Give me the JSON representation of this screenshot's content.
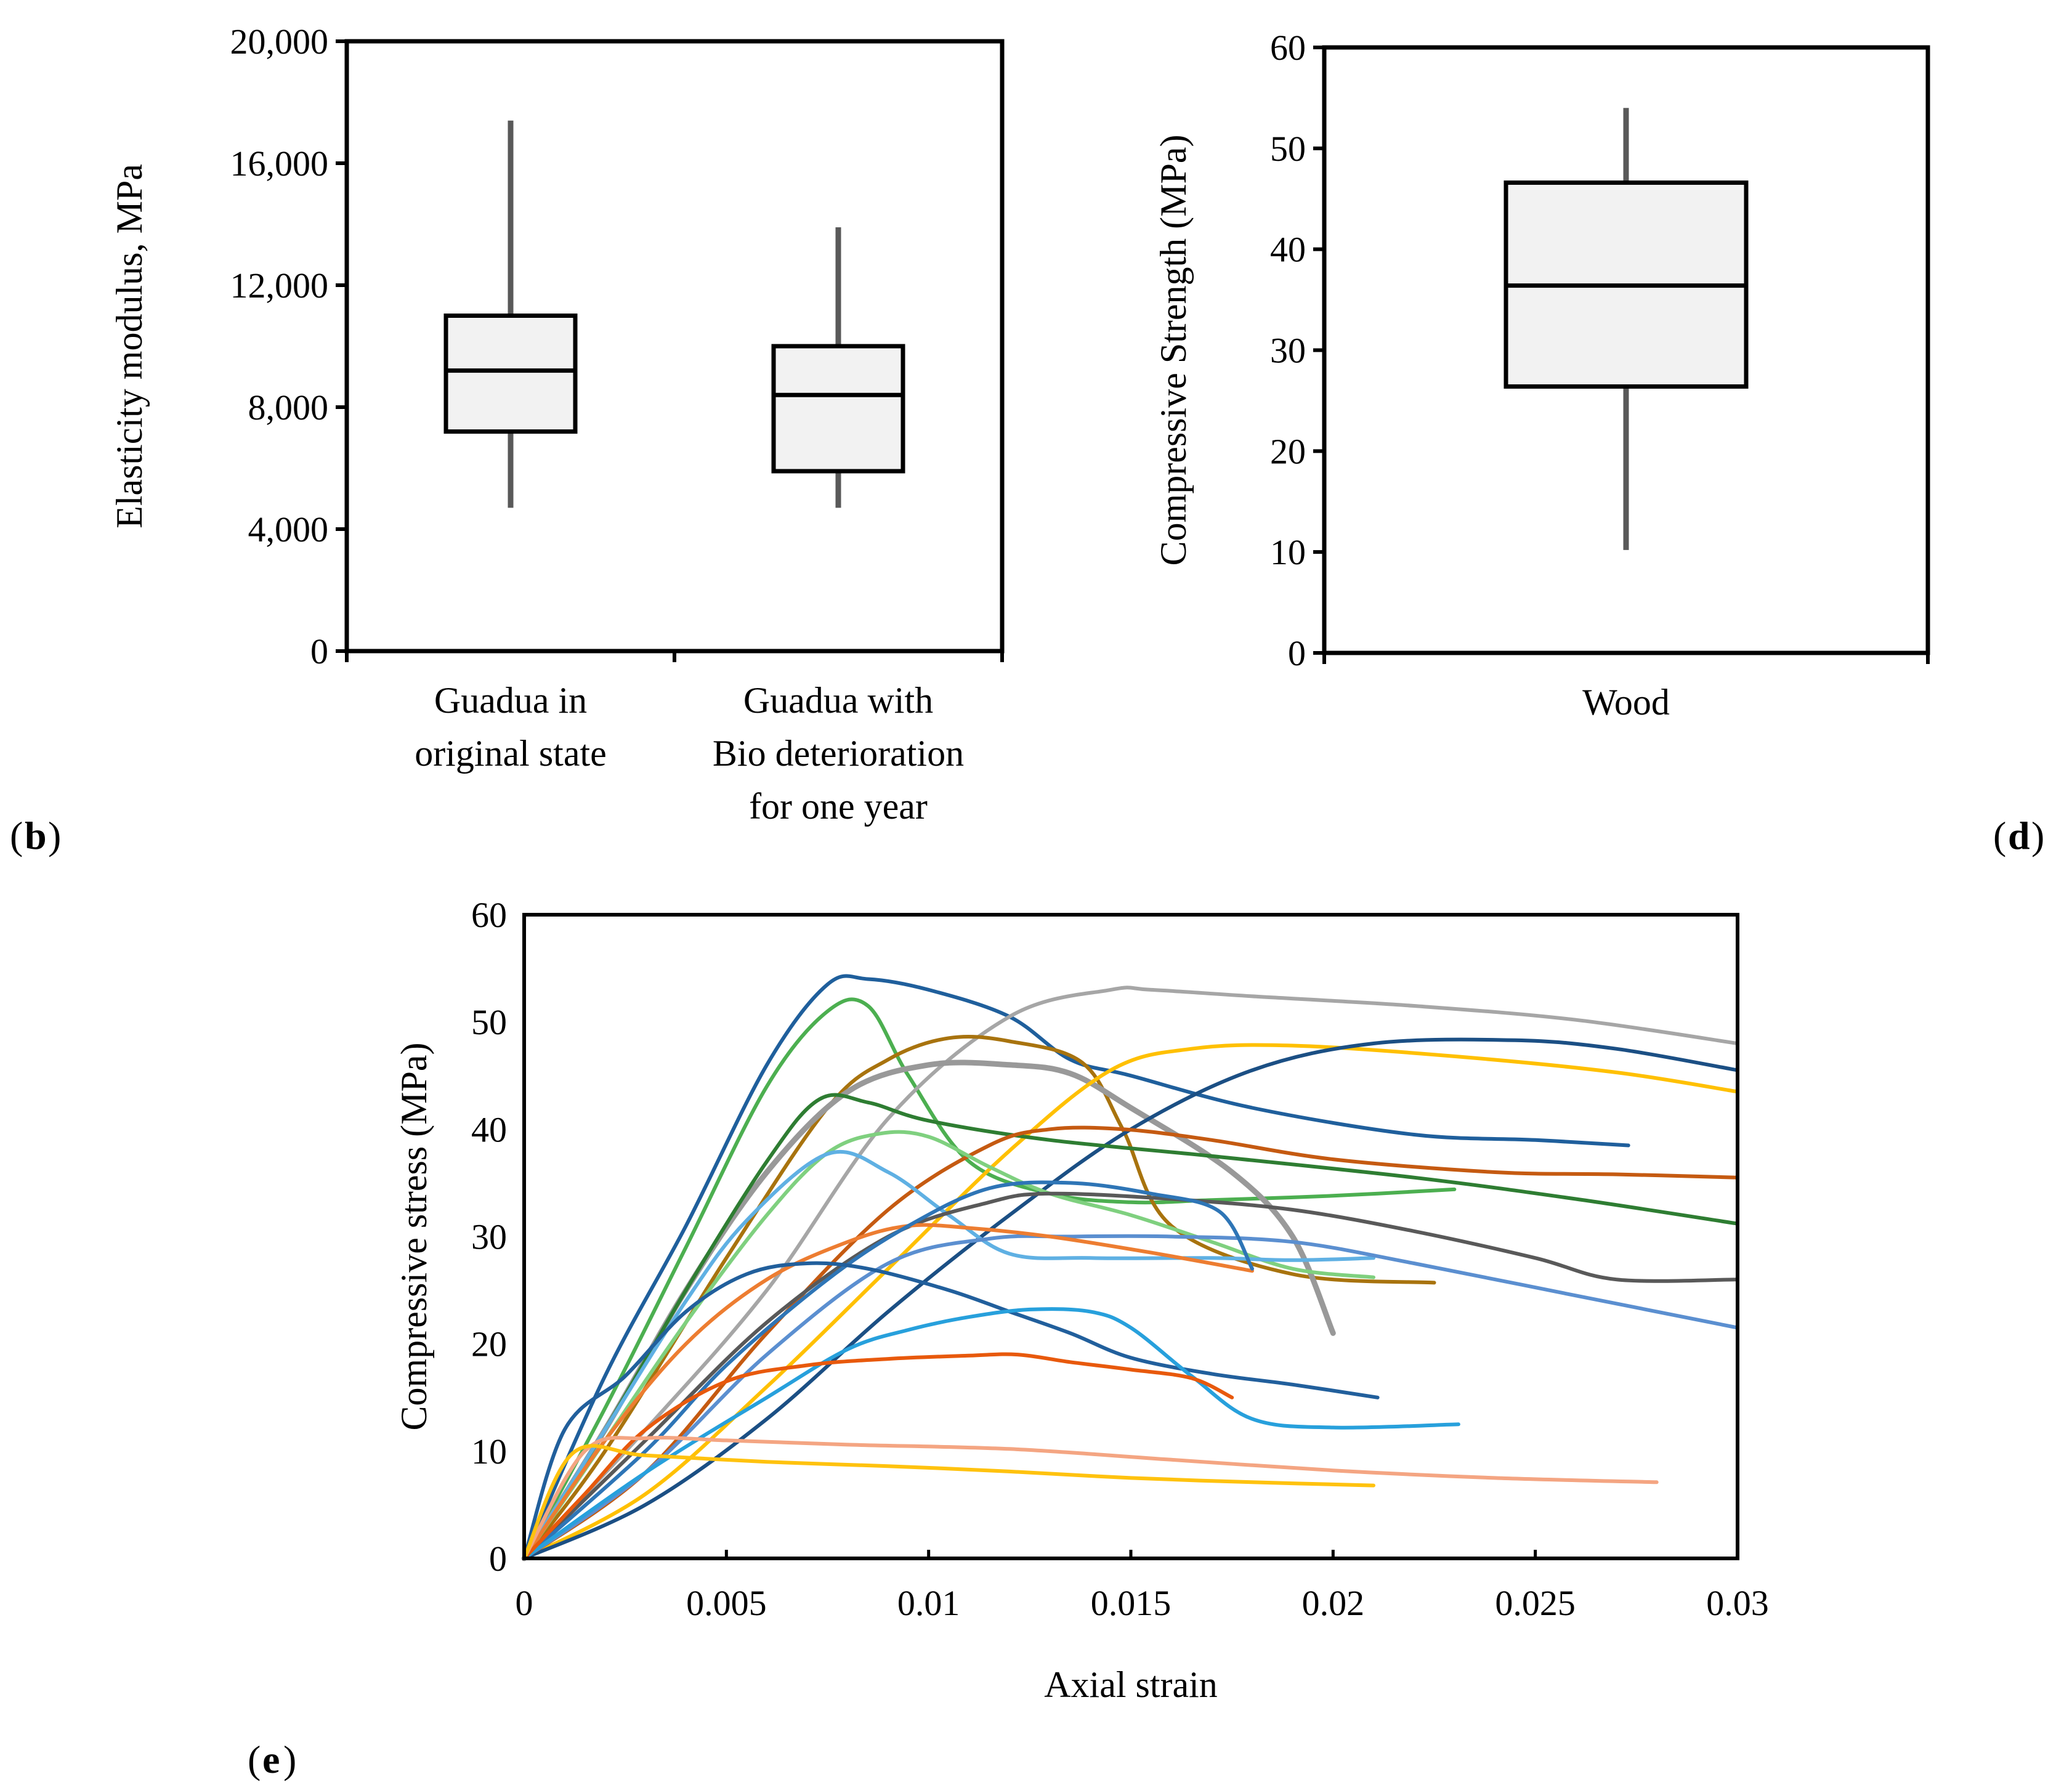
{
  "colors": {
    "axis": "#000000",
    "box_fill": "#f2f2f2",
    "whisker": "#595959"
  },
  "panel_labels": {
    "b": "b",
    "d": "d",
    "e": "e"
  },
  "chart_data": [
    {
      "id": "b",
      "type": "box",
      "title": "",
      "xlabel": "",
      "ylabel": "Elasticity modulus, MPa",
      "ylim": [
        0,
        20000
      ],
      "yticks": [
        "0",
        "4,000",
        "8,000",
        "12,000",
        "16,000",
        "20,000"
      ],
      "ytick_values": [
        0,
        4000,
        8000,
        12000,
        16000,
        20000
      ],
      "grid": false,
      "boxes": [
        {
          "label_lines": [
            "Guadua in",
            "original state"
          ],
          "min": 4700,
          "q1": 7200,
          "median": 9200,
          "q3": 11000,
          "max": 17400
        },
        {
          "label_lines": [
            "Guadua with",
            "Bio deterioration",
            "for one year"
          ],
          "min": 4700,
          "q1": 5900,
          "median": 8400,
          "q3": 10000,
          "max": 13900
        }
      ]
    },
    {
      "id": "d",
      "type": "box",
      "title": "",
      "xlabel": "",
      "ylabel": "Compressive Strength (MPa)",
      "ylim": [
        0,
        60
      ],
      "yticks": [
        "0",
        "10",
        "20",
        "30",
        "40",
        "50",
        "60"
      ],
      "ytick_values": [
        0,
        10,
        20,
        30,
        40,
        50,
        60
      ],
      "grid": false,
      "boxes": [
        {
          "label_lines": [
            "Wood"
          ],
          "min": 10.2,
          "q1": 26.4,
          "median": 36.4,
          "q3": 46.6,
          "max": 54.0
        }
      ]
    },
    {
      "id": "e",
      "type": "line",
      "title": "",
      "xlabel": "Axial strain",
      "ylabel": "Compressive stress (MPa)",
      "xlim": [
        0,
        0.03
      ],
      "ylim": [
        0,
        60
      ],
      "xticks": [
        "0",
        "0.005",
        "0.01",
        "0.015",
        "0.02",
        "0.025",
        "0.03"
      ],
      "xtick_values": [
        0,
        0.005,
        0.01,
        0.015,
        0.02,
        0.025,
        0.03
      ],
      "yticks": [
        "0",
        "10",
        "20",
        "30",
        "40",
        "50",
        "60"
      ],
      "ytick_values": [
        0,
        10,
        20,
        30,
        40,
        50,
        60
      ],
      "grid": false,
      "legend": "none",
      "series": [
        {
          "color": "#1f5f9c",
          "x": [
            0,
            0.002,
            0.004,
            0.006,
            0.0075,
            0.0085,
            0.01,
            0.012,
            0.0135,
            0.015,
            0.018,
            0.022,
            0.025,
            0.0273
          ],
          "y": [
            0,
            17,
            31,
            46,
            53.5,
            54,
            53,
            50.5,
            46.5,
            45,
            42,
            39.5,
            39,
            38.5
          ]
        },
        {
          "color": "#4caf50",
          "x": [
            0,
            0.002,
            0.004,
            0.006,
            0.0075,
            0.0085,
            0.0095,
            0.011,
            0.013,
            0.015,
            0.017,
            0.02,
            0.023
          ],
          "y": [
            0,
            14,
            29,
            44,
            51,
            51.5,
            45,
            37,
            34,
            33.2,
            33.4,
            33.8,
            34.4
          ]
        },
        {
          "color": "#a6a6a6",
          "x": [
            0,
            0.003,
            0.006,
            0.009,
            0.012,
            0.0145,
            0.0155,
            0.018,
            0.022,
            0.026,
            0.03
          ],
          "y": [
            0,
            12,
            25,
            41,
            50.5,
            53,
            53,
            52.4,
            51.5,
            50.2,
            48
          ]
        },
        {
          "color": "#a8730e",
          "x": [
            0,
            0.002,
            0.005,
            0.0075,
            0.009,
            0.0105,
            0.012,
            0.0138,
            0.0148,
            0.016,
            0.019,
            0.0225
          ],
          "y": [
            0,
            10,
            28,
            42,
            46.5,
            48.5,
            48.2,
            46.2,
            40,
            31,
            26.5,
            25.7
          ]
        },
        {
          "color": "#999999",
          "width": 9,
          "x": [
            0,
            0.002,
            0.004,
            0.006,
            0.008,
            0.01,
            0.012,
            0.0135,
            0.015,
            0.0175,
            0.019,
            0.02
          ],
          "y": [
            0,
            12,
            25,
            36,
            43.5,
            46,
            46,
            45.2,
            42,
            36,
            30,
            21
          ]
        },
        {
          "color": "#ffc000",
          "x": [
            0,
            0.003,
            0.006,
            0.009,
            0.012,
            0.0145,
            0.0165,
            0.019,
            0.023,
            0.027,
            0.03
          ],
          "y": [
            0,
            6,
            16,
            27,
            38,
            45.5,
            47.5,
            47.8,
            46.8,
            45.3,
            43.5
          ]
        },
        {
          "color": "#1b4f84",
          "x": [
            0,
            0.003,
            0.006,
            0.009,
            0.012,
            0.015,
            0.018,
            0.021,
            0.0245,
            0.027,
            0.03
          ],
          "y": [
            0,
            5,
            13,
            23,
            32,
            40,
            45.5,
            48,
            48.3,
            47.5,
            45.5
          ]
        },
        {
          "color": "#2e7d32",
          "x": [
            0,
            0.002,
            0.004,
            0.006,
            0.0073,
            0.0085,
            0.01,
            0.013,
            0.017,
            0.022,
            0.026,
            0.03
          ],
          "y": [
            0,
            12,
            25,
            37,
            42.8,
            42.5,
            40.8,
            39,
            37.5,
            35.5,
            33.5,
            31.2
          ]
        },
        {
          "color": "#c55a11",
          "x": [
            0,
            0.003,
            0.006,
            0.009,
            0.0115,
            0.013,
            0.0148,
            0.017,
            0.02,
            0.024,
            0.027,
            0.03
          ],
          "y": [
            0,
            8,
            21,
            32.5,
            38.5,
            40,
            40,
            39,
            37.2,
            36,
            35.8,
            35.5
          ]
        },
        {
          "color": "#7fd07f",
          "x": [
            0,
            0.002,
            0.004,
            0.006,
            0.0075,
            0.0088,
            0.01,
            0.0115,
            0.013,
            0.015,
            0.017,
            0.019,
            0.021
          ],
          "y": [
            0,
            11,
            22,
            32,
            37.8,
            39.6,
            39.3,
            36.5,
            34,
            32,
            29.5,
            27,
            26.2
          ]
        },
        {
          "color": "#5fb0e3",
          "x": [
            0,
            0.002,
            0.004,
            0.0055,
            0.0075,
            0.009,
            0.0105,
            0.012,
            0.014,
            0.017,
            0.019,
            0.021
          ],
          "y": [
            0,
            12,
            24,
            31.5,
            37.7,
            36,
            32,
            28.4,
            28,
            28,
            27.8,
            28
          ]
        },
        {
          "color": "#595959",
          "x": [
            0,
            0.003,
            0.006,
            0.009,
            0.0115,
            0.013,
            0.016,
            0.019,
            0.022,
            0.025,
            0.027,
            0.03
          ],
          "y": [
            0,
            11,
            22,
            30,
            33.2,
            34,
            33.5,
            32.5,
            30.5,
            28,
            26,
            26
          ]
        },
        {
          "color": "#5b8fd0",
          "x": [
            0,
            0.003,
            0.006,
            0.009,
            0.0115,
            0.0135,
            0.016,
            0.019,
            0.022,
            0.026,
            0.03
          ],
          "y": [
            0,
            8,
            19,
            27.5,
            29.8,
            30,
            30,
            29.5,
            27.5,
            24.5,
            21.5
          ]
        },
        {
          "color": "#ed7d31",
          "x": [
            0,
            0.002,
            0.004,
            0.006,
            0.008,
            0.0095,
            0.011,
            0.013,
            0.0155,
            0.018
          ],
          "y": [
            0,
            11,
            20,
            26,
            29.5,
            31,
            30.8,
            30,
            28.5,
            26.8
          ]
        },
        {
          "color": "#2e75b6",
          "x": [
            0,
            0.003,
            0.005,
            0.0075,
            0.0095,
            0.0115,
            0.0135,
            0.0155,
            0.0172,
            0.018
          ],
          "y": [
            0,
            10,
            18,
            26,
            31,
            34.5,
            35,
            34,
            32.3,
            27
          ]
        },
        {
          "color": "#215f9c",
          "x": [
            0,
            0.001,
            0.0025,
            0.004,
            0.0055,
            0.007,
            0.0085,
            0.0105,
            0.012,
            0.0135,
            0.015,
            0.017,
            0.019,
            0.0211
          ],
          "y": [
            0,
            12,
            17,
            23,
            26.5,
            27.5,
            27,
            25,
            23,
            21,
            18.7,
            17.2,
            16.2,
            15
          ]
        },
        {
          "color": "#27a0dc",
          "x": [
            0,
            0.003,
            0.006,
            0.008,
            0.0095,
            0.011,
            0.0125,
            0.014,
            0.015,
            0.0165,
            0.018,
            0.02,
            0.0231
          ],
          "y": [
            0,
            8,
            15,
            19.5,
            21.3,
            22.5,
            23.2,
            23,
            21.5,
            17,
            13,
            12.2,
            12.5
          ]
        },
        {
          "color": "#e8590c",
          "x": [
            0,
            0.0015,
            0.003,
            0.005,
            0.007,
            0.009,
            0.011,
            0.0122,
            0.0135,
            0.015,
            0.0165,
            0.0175
          ],
          "y": [
            0,
            6,
            12,
            16.5,
            18,
            18.6,
            18.9,
            19,
            18.3,
            17.6,
            16.8,
            15
          ]
        },
        {
          "color": "#f4a582",
          "x": [
            0,
            0.0015,
            0.003,
            0.005,
            0.008,
            0.012,
            0.016,
            0.02,
            0.024,
            0.028
          ],
          "y": [
            0,
            10,
            11.2,
            11,
            10.6,
            10.2,
            9.2,
            8.2,
            7.5,
            7.1
          ]
        },
        {
          "color": "#ffc20e",
          "x": [
            0,
            0.0012,
            0.003,
            0.006,
            0.009,
            0.012,
            0.015,
            0.018,
            0.021
          ],
          "y": [
            0,
            9.8,
            9.6,
            9.0,
            8.6,
            8.1,
            7.5,
            7.1,
            6.8
          ]
        }
      ]
    }
  ]
}
